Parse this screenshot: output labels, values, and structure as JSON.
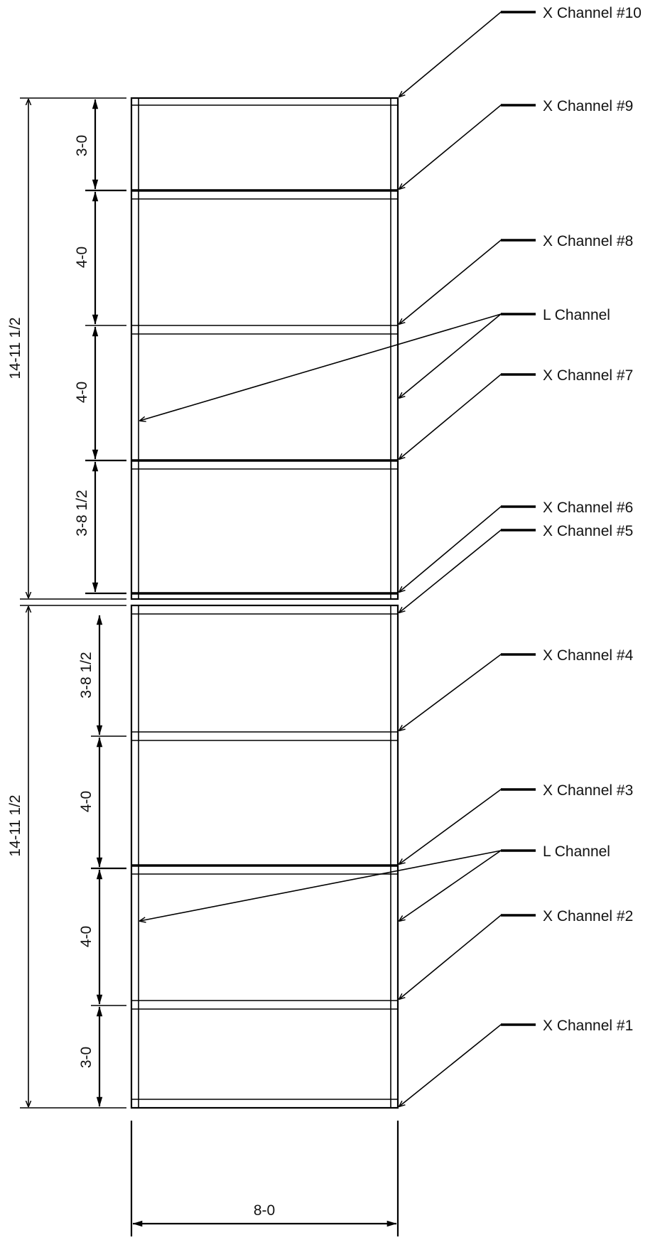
{
  "callouts": [
    {
      "key": "x10",
      "text": "X Channel #10"
    },
    {
      "key": "x9",
      "text": "X Channel #9"
    },
    {
      "key": "x8",
      "text": "X Channel #8"
    },
    {
      "key": "l_upper",
      "text": "L Channel"
    },
    {
      "key": "x7",
      "text": "X Channel #7"
    },
    {
      "key": "x6",
      "text": "X Channel #6"
    },
    {
      "key": "x5",
      "text": "X Channel #5"
    },
    {
      "key": "x4",
      "text": "X Channel #4"
    },
    {
      "key": "x3",
      "text": "X Channel #3"
    },
    {
      "key": "l_lower",
      "text": "L Channel"
    },
    {
      "key": "x2",
      "text": "X Channel #2"
    },
    {
      "key": "x1",
      "text": "X Channel #1"
    }
  ],
  "dimensions": {
    "upper_overall": "14-11 1/2",
    "lower_overall": "14-11 1/2",
    "upper_segments": [
      "3-0",
      "4-0",
      "4-0",
      "3-8 1/2"
    ],
    "lower_segments": [
      "3-8 1/2",
      "4-0",
      "4-0",
      "3-0"
    ],
    "width": "8-0"
  },
  "colors": {
    "line": "#000000",
    "background": "#ffffff"
  }
}
